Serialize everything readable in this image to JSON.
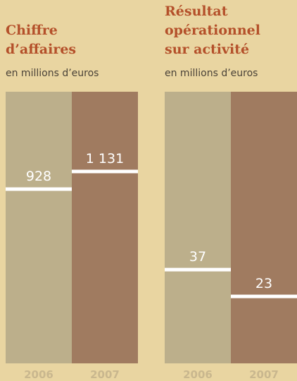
{
  "chart_data": [
    {
      "type": "bar",
      "title": [
        "Chiffre",
        "d’affaires"
      ],
      "subtitle": "en millions d’euros",
      "categories": [
        "2006",
        "2007"
      ],
      "values": [
        928,
        1131
      ],
      "value_labels": [
        "928",
        "1 131"
      ],
      "colors": [
        "#bcaf8b",
        "#a07b60"
      ],
      "ylim": [
        -1080,
        2050
      ]
    },
    {
      "type": "bar",
      "title": [
        "Résultat",
        "opérationnel",
        "sur activité"
      ],
      "subtitle": "en millions d’euros",
      "categories": [
        "2006",
        "2007"
      ],
      "values": [
        37,
        23
      ],
      "value_labels": [
        "37",
        "23"
      ],
      "colors": [
        "#bcaf8b",
        "#a07b60"
      ],
      "ylim": [
        -12,
        130
      ]
    }
  ]
}
